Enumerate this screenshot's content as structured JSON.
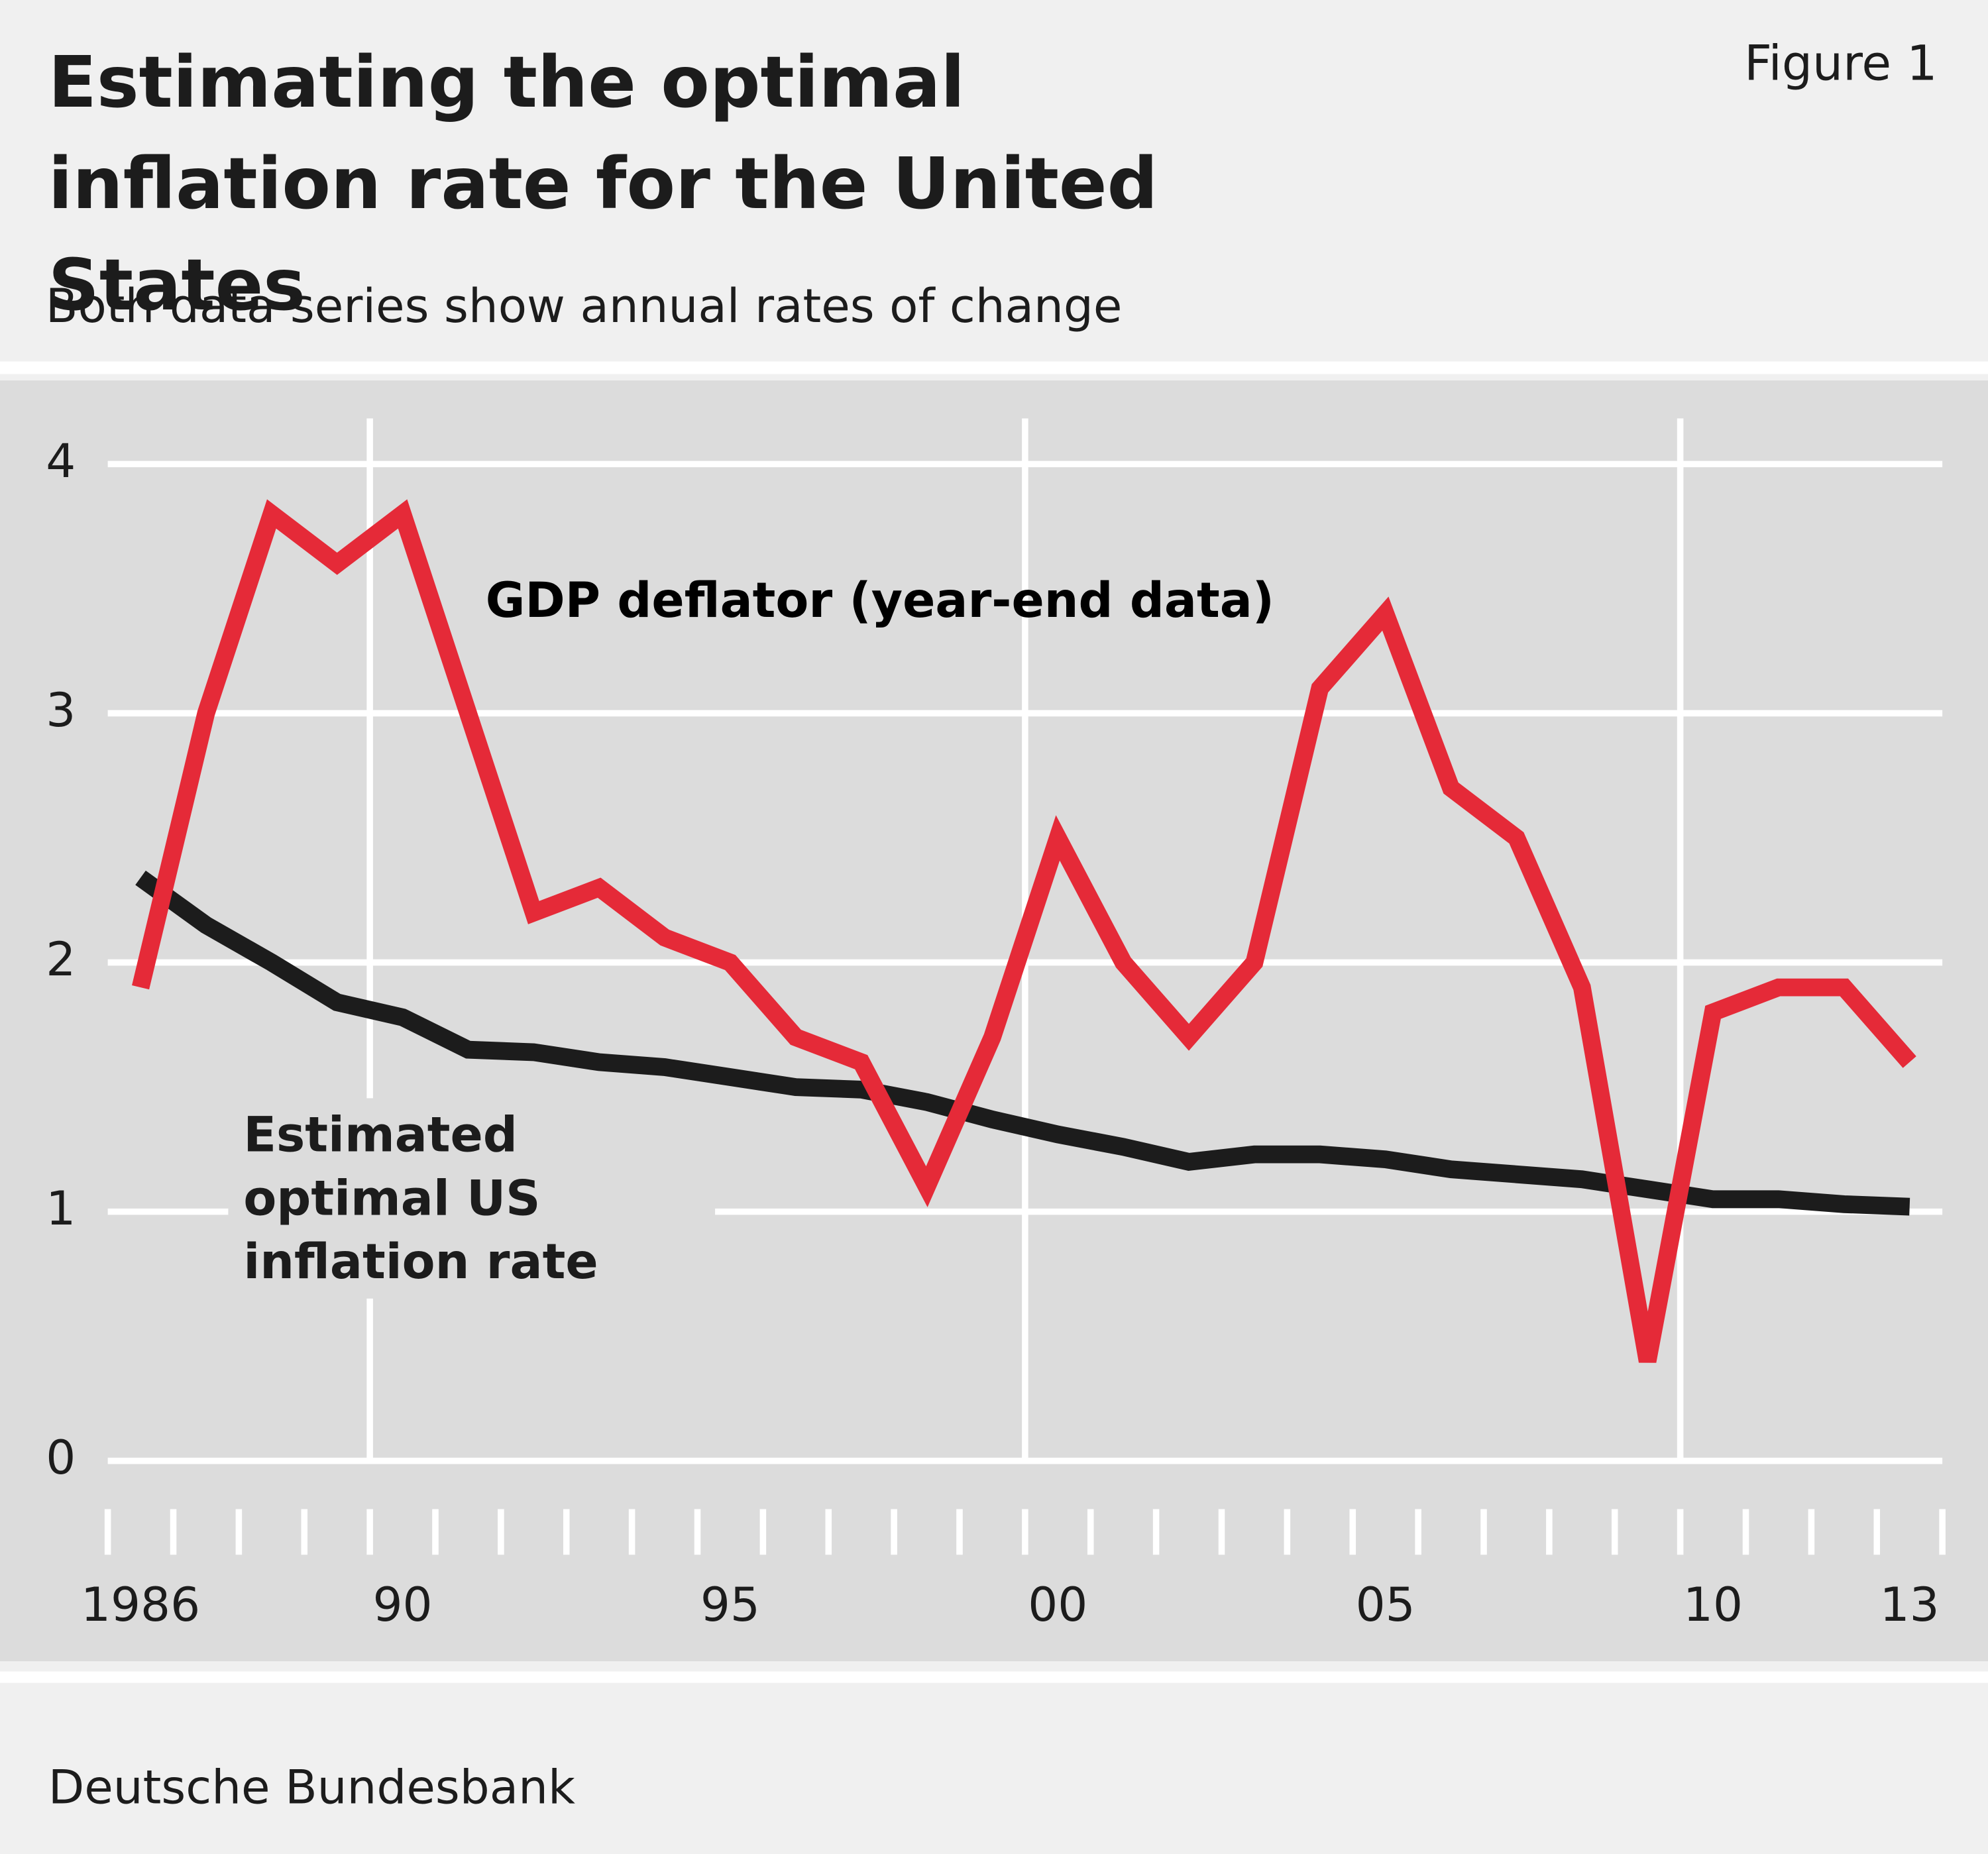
{
  "figure_label": "Figure 1",
  "subtitle": "Both data series show annual rates of change",
  "source": "Deutsche Bundesbank",
  "chart_data": {
    "type": "line",
    "title": "Estimating the optimal inflation rate for the United States",
    "categories": [
      "1986",
      null,
      null,
      null,
      "90",
      null,
      null,
      null,
      null,
      "95",
      null,
      null,
      null,
      null,
      "00",
      null,
      null,
      null,
      null,
      "05",
      null,
      null,
      null,
      null,
      "10",
      null,
      null,
      "13"
    ],
    "series": [
      {
        "name": "GDP deflator (year-end data)",
        "color": "#e52a38",
        "values": [
          1.9,
          3.0,
          3.8,
          3.6,
          3.8,
          3.0,
          2.2,
          2.3,
          2.1,
          2.0,
          1.7,
          1.6,
          1.1,
          1.7,
          2.5,
          2.0,
          1.7,
          2.0,
          3.1,
          3.4,
          2.7,
          2.5,
          1.9,
          0.4,
          1.8,
          1.9,
          1.9,
          1.6
        ]
      },
      {
        "name": "Estimated optimal US inflation rate",
        "color": "#1c1c1c",
        "values": [
          2.34,
          2.15,
          2.0,
          1.84,
          1.78,
          1.65,
          1.64,
          1.6,
          1.58,
          1.54,
          1.5,
          1.49,
          1.44,
          1.37,
          1.31,
          1.26,
          1.2,
          1.23,
          1.23,
          1.21,
          1.17,
          1.15,
          1.13,
          1.09,
          1.05,
          1.05,
          1.03,
          1.02
        ]
      }
    ],
    "ylim": [
      0,
      4.3
    ],
    "yticks": [
      0,
      1,
      2,
      3,
      4
    ],
    "grid": true
  }
}
